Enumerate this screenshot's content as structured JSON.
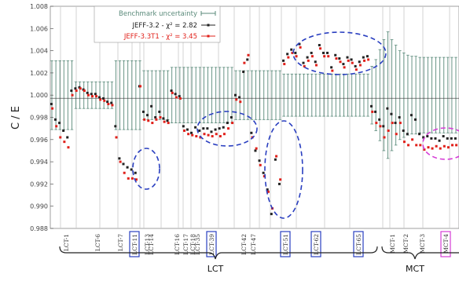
{
  "chart_data": {
    "type": "scatter",
    "ylabel": "C / E",
    "ylim": [
      0.988,
      1.008
    ],
    "yticks": [
      "0.988",
      "0.990",
      "0.992",
      "0.994",
      "0.996",
      "0.998",
      "1.000",
      "1.002",
      "1.004",
      "1.006",
      "1.008"
    ],
    "xticklabels": [
      "LCT-1",
      "LCT-6",
      "LCT-7",
      "LCT-11",
      "LCT-13",
      "LCT-14",
      "LCT-16",
      "LCT-17",
      "LCT-18",
      "LCT-35",
      "LCT-39",
      "LCT-42",
      "LCT-47",
      "LCT-51",
      "LCT-62",
      "LCT-65",
      "MCT-1",
      "MCT-2",
      "MCT-3",
      "MCT-4"
    ],
    "boxed_ticks": [
      "LCT-11",
      "LCT-39",
      "LCT-51",
      "LCT-62",
      "LCT-65"
    ],
    "boxed_ticks_magenta": [
      "MCT-4"
    ],
    "groups": [
      "LCT",
      "MCT"
    ],
    "legend": [
      {
        "label": "Benchmark uncertainty",
        "color": "#5a8a7a"
      },
      {
        "label": "JEFF-3.2 - χ² = 2.82",
        "color": "#222222"
      },
      {
        "label": "JEFF-3.3T1 - χ² = 3.45",
        "color": "#e0201a"
      }
    ],
    "series": [
      {
        "name": "JEFF-3.2 - χ² = 2.82",
        "color": "#222222",
        "values": [
          0.9992,
          0.9978,
          0.9975,
          0.9968,
          0.9962,
          1.0004,
          1.0006,
          1.0007,
          1.0005,
          1.0002,
          1.0001,
          1.0001,
          0.9998,
          0.9997,
          0.9994,
          0.9993,
          0.9972,
          0.9943,
          0.9938,
          0.9935,
          0.9933,
          0.993,
          1.0008,
          0.9985,
          0.9982,
          0.999,
          0.998,
          0.9985,
          0.9979,
          0.9977,
          1.0004,
          1.0001,
          0.9999,
          0.9972,
          0.9969,
          0.9966,
          0.9971,
          0.9968,
          0.997,
          0.997,
          0.9967,
          0.9969,
          0.997,
          0.9971,
          0.9975,
          0.998,
          1.0,
          0.9998,
          1.0021,
          1.0032,
          0.9966,
          0.995,
          0.9941,
          0.993,
          0.9915,
          0.9893,
          0.9942,
          0.992,
          1.0031,
          1.0037,
          1.0041,
          1.0038,
          1.0046,
          1.0029,
          1.0034,
          1.0038,
          1.003,
          1.0045,
          1.0038,
          1.0038,
          1.0025,
          1.0036,
          1.0033,
          1.0028,
          1.0034,
          1.0032,
          1.0026,
          1.003,
          1.0034,
          1.0035,
          0.999,
          0.9985,
          0.9978,
          0.9972,
          0.9988,
          0.9983,
          0.9975,
          0.998,
          0.9968,
          0.9965,
          0.9982,
          0.9978,
          0.9965,
          0.9962,
          0.9963,
          0.9961,
          0.9961,
          0.9959,
          0.9963,
          0.9961,
          0.9961,
          0.9961
        ]
      },
      {
        "name": "JEFF-3.3T1 - χ² = 3.45",
        "color": "#e0201a",
        "values": [
          0.9988,
          0.9972,
          0.9962,
          0.9958,
          0.9953,
          1.0,
          1.0004,
          1.0006,
          1.0004,
          1.0,
          0.9999,
          0.9999,
          0.9996,
          0.9995,
          0.9992,
          0.9991,
          0.9962,
          0.994,
          0.993,
          0.9925,
          0.9925,
          0.9924,
          1.0008,
          0.9978,
          0.9977,
          0.9975,
          0.9978,
          0.998,
          0.9976,
          0.9975,
          1.0002,
          0.9998,
          0.9997,
          0.9968,
          0.9965,
          0.9964,
          0.9963,
          0.9962,
          0.9965,
          0.9964,
          0.9963,
          0.9965,
          0.9963,
          0.9965,
          0.997,
          0.9975,
          0.9996,
          0.9994,
          1.0029,
          1.0036,
          0.9962,
          0.9952,
          0.9937,
          0.9927,
          0.9913,
          0.9898,
          0.9945,
          0.9924,
          1.0028,
          1.0034,
          1.0038,
          1.0035,
          1.0043,
          1.0026,
          1.0031,
          1.0035,
          1.0027,
          1.0042,
          1.0035,
          1.0035,
          1.0022,
          1.0033,
          1.003,
          1.0025,
          1.0031,
          1.0029,
          1.0023,
          1.0027,
          1.0031,
          1.0032,
          0.9985,
          0.9975,
          0.9972,
          0.9962,
          0.9968,
          0.9975,
          0.9965,
          0.9975,
          0.9958,
          0.9955,
          0.996,
          0.9955,
          0.9955,
          0.9951,
          0.9953,
          0.9952,
          0.9954,
          0.9952,
          0.9954,
          0.9953,
          0.9955,
          0.9955
        ]
      }
    ],
    "uncertainty": [
      0.0031,
      0.0031,
      0.0031,
      0.0031,
      0.0031,
      0.0031,
      0.0012,
      0.0012,
      0.0012,
      0.0012,
      0.0012,
      0.0012,
      0.0012,
      0.0012,
      0.0012,
      0.0012,
      0.0031,
      0.0031,
      0.0031,
      0.0031,
      0.0031,
      0.0031,
      0.0031,
      0.0022,
      0.0022,
      0.0022,
      0.0022,
      0.0022,
      0.0022,
      0.0022,
      0.0025,
      0.0025,
      0.0025,
      0.0025,
      0.0025,
      0.0025,
      0.0025,
      0.0025,
      0.0025,
      0.0025,
      0.0025,
      0.0025,
      0.0025,
      0.0025,
      0.0025,
      0.0025,
      0.0022,
      0.0022,
      0.0022,
      0.0022,
      0.0022,
      0.0022,
      0.0022,
      0.0022,
      0.0022,
      0.0022,
      0.0022,
      0.0022,
      0.0019,
      0.0019,
      0.0019,
      0.0019,
      0.0019,
      0.0019,
      0.0019,
      0.0019,
      0.0019,
      0.0019,
      0.0019,
      0.0019,
      0.0019,
      0.0019,
      0.0019,
      0.0019,
      0.0019,
      0.0019,
      0.0019,
      0.0019,
      0.0019,
      0.0019,
      0.0026,
      0.0032,
      0.0041,
      0.005,
      0.0057,
      0.005,
      0.0045,
      0.004,
      0.0038,
      0.0036,
      0.0035,
      0.0035,
      0.0034,
      0.0034,
      0.0034,
      0.0034,
      0.0034,
      0.0034,
      0.0034,
      0.0034,
      0.0034,
      0.0034
    ],
    "grid": true,
    "legend_position": "top-left"
  }
}
